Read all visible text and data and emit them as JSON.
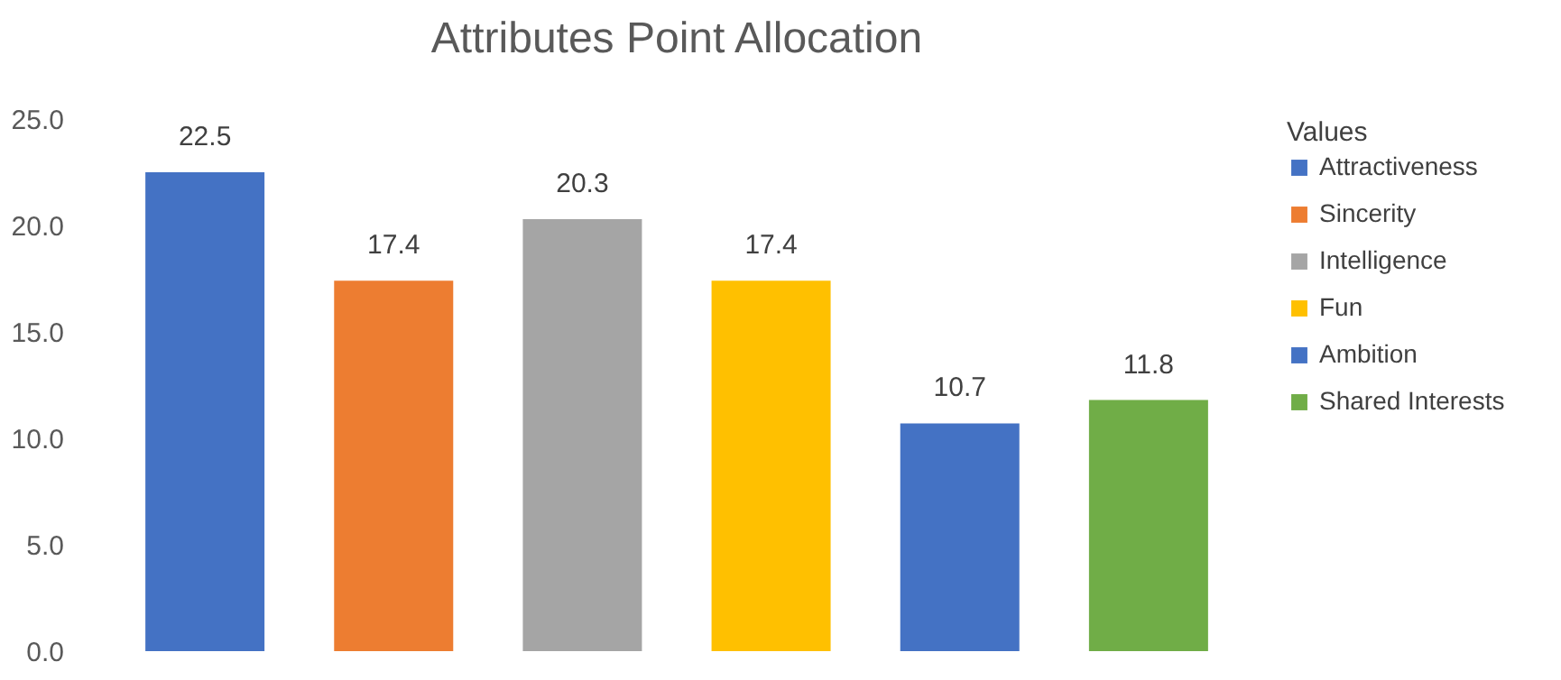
{
  "chart_data": {
    "type": "bar",
    "title": "Attributes Point Allocation",
    "legend_title": "Values",
    "categories": [
      null,
      null,
      null,
      null,
      null,
      null
    ],
    "series": [
      {
        "name": "Attractiveness",
        "color": "#4472c4",
        "values": [
          22.5,
          null,
          null,
          null,
          null,
          null
        ]
      },
      {
        "name": "Sincerity",
        "color": "#ed7d31",
        "values": [
          null,
          17.4,
          null,
          null,
          null,
          null
        ]
      },
      {
        "name": "Intelligence",
        "color": "#a5a5a5",
        "values": [
          null,
          null,
          20.3,
          null,
          null,
          null
        ]
      },
      {
        "name": "Fun",
        "color": "#ffc000",
        "values": [
          null,
          null,
          null,
          17.4,
          null,
          null
        ]
      },
      {
        "name": "Ambition",
        "color": "#4472c4",
        "values": [
          null,
          null,
          null,
          null,
          10.7,
          null
        ]
      },
      {
        "name": "Shared Interests",
        "color": "#70ad47",
        "values": [
          null,
          null,
          null,
          null,
          null,
          11.8
        ]
      }
    ],
    "ylim": [
      0,
      25
    ],
    "yticks": [
      {
        "value": 0,
        "label": "0.0"
      },
      {
        "value": 5,
        "label": "5.0"
      },
      {
        "value": 10,
        "label": "10.0"
      },
      {
        "value": 15,
        "label": "15.0"
      },
      {
        "value": 20,
        "label": "20.0"
      },
      {
        "value": 25,
        "label": "25.0"
      }
    ],
    "stacked": true,
    "data_labels": true,
    "legend": "right",
    "grid": false,
    "tick_labels": "y"
  }
}
